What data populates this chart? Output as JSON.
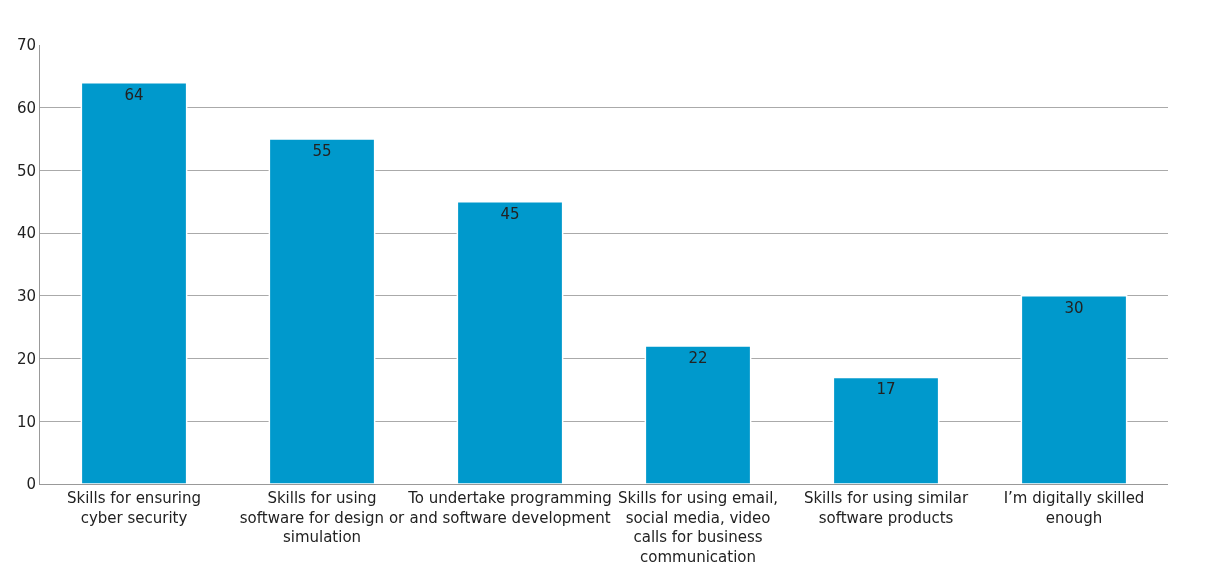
{
  "chart_data": {
    "type": "bar",
    "categories": [
      "Skills for ensuring cyber security",
      "Skills for using software for design or simulation",
      "To undertake programming and software development",
      "Skills for using email, social media, video calls for business communication",
      "Skills for using similar software products",
      "I’m digitally skilled enough"
    ],
    "values": [
      64,
      55,
      45,
      22,
      17,
      30
    ],
    "color": "#0099cc",
    "ylim": [
      0,
      70
    ],
    "yticks": [
      0,
      10,
      20,
      30,
      40,
      50,
      60,
      70
    ],
    "grid": "y",
    "legend": false,
    "data_labels": true
  }
}
